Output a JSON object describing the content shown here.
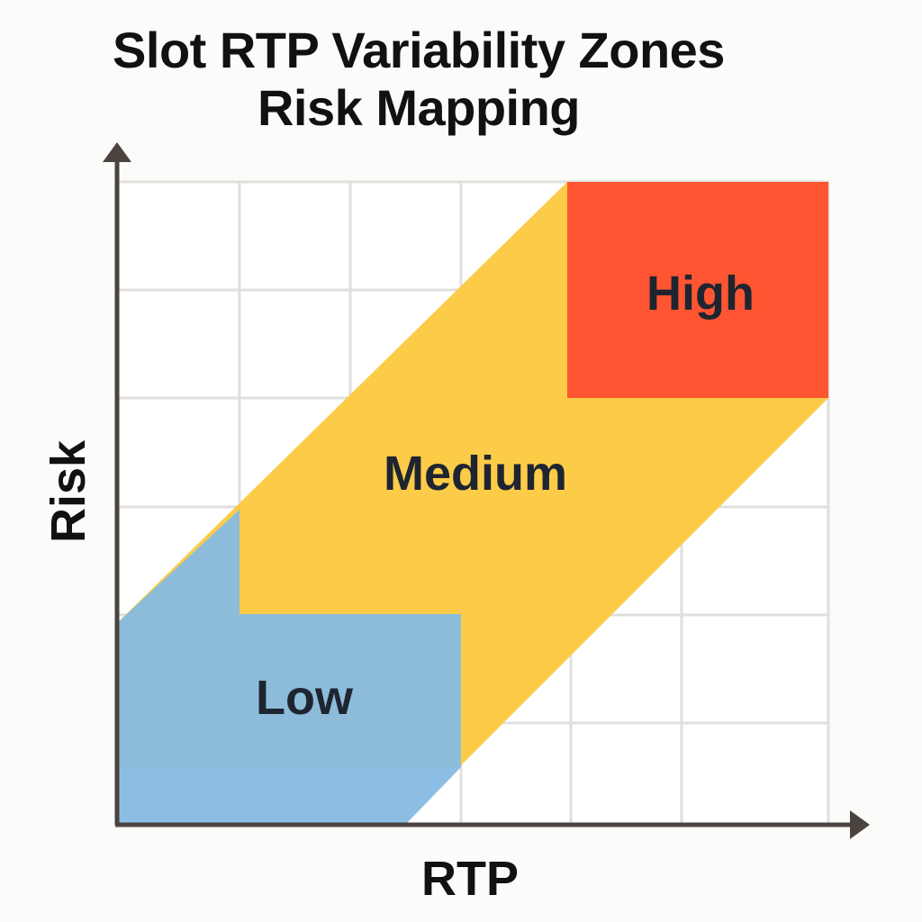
{
  "title": {
    "line1": "Slot RTP Variability Zones",
    "line2": "Risk Mapping"
  },
  "axes": {
    "x_label": "RTP",
    "y_label": "Risk"
  },
  "zones": [
    {
      "id": "low",
      "label": "Low",
      "color": "#86bbe3"
    },
    {
      "id": "medium",
      "label": "Medium",
      "color": "#fcc93f"
    },
    {
      "id": "high",
      "label": "High",
      "color": "#ff5532"
    }
  ],
  "colors": {
    "axis": "#4a433e",
    "grid": "#e0dfdc",
    "background": "#fbfbf9"
  }
}
